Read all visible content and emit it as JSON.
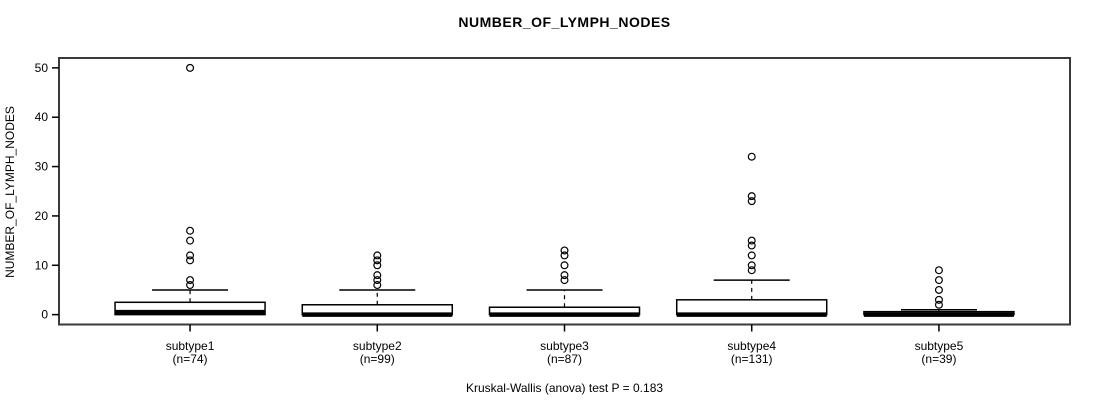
{
  "title": "NUMBER_OF_LYMPH_NODES",
  "footer": {
    "stat_test": "Kruskal-Wallis (anova) test P = 0.183"
  },
  "colors": {
    "background": "#ffffff",
    "box_fill": "#ffffff",
    "stroke": "#000000",
    "border": "#3a3a3a"
  },
  "chart_data": {
    "type": "boxplot",
    "title": "NUMBER_OF_LYMPH_NODES",
    "ylabel": "NUMBER_OF_LYMPH_NODES",
    "xlabel": "",
    "annotation": "Kruskal-Wallis (anova) test P = 0.183",
    "ylim": [
      -2,
      52
    ],
    "yticks": [
      0,
      10,
      20,
      30,
      40,
      50
    ],
    "grid": false,
    "legend": "none",
    "groups": [
      {
        "label": "subtype1",
        "n": 74,
        "n_label": "(n=74)",
        "min": 0,
        "q1": 0,
        "median": 0.5,
        "q3": 2.5,
        "whisker_low": 0,
        "whisker_high": 5,
        "outliers": [
          6,
          7,
          11,
          12,
          15,
          17,
          50
        ]
      },
      {
        "label": "subtype2",
        "n": 99,
        "n_label": "(n=99)",
        "min": 0,
        "q1": 0,
        "median": 0,
        "q3": 2,
        "whisker_low": 0,
        "whisker_high": 5,
        "outliers": [
          6,
          7,
          8,
          10,
          11,
          12
        ]
      },
      {
        "label": "subtype3",
        "n": 87,
        "n_label": "(n=87)",
        "min": 0,
        "q1": 0,
        "median": 0,
        "q3": 1.5,
        "whisker_low": 0,
        "whisker_high": 5,
        "outliers": [
          7,
          8,
          10,
          12,
          13
        ]
      },
      {
        "label": "subtype4",
        "n": 131,
        "n_label": "(n=131)",
        "min": 0,
        "q1": 0,
        "median": 0,
        "q3": 3,
        "whisker_low": 0,
        "whisker_high": 7,
        "outliers": [
          9,
          10,
          12,
          14,
          15,
          23,
          24,
          32
        ]
      },
      {
        "label": "subtype5",
        "n": 39,
        "n_label": "(n=39)",
        "min": 0,
        "q1": 0,
        "median": 0,
        "q3": 0.6,
        "whisker_low": 0,
        "whisker_high": 1,
        "outliers": [
          2,
          3,
          5,
          7,
          9
        ]
      }
    ]
  }
}
